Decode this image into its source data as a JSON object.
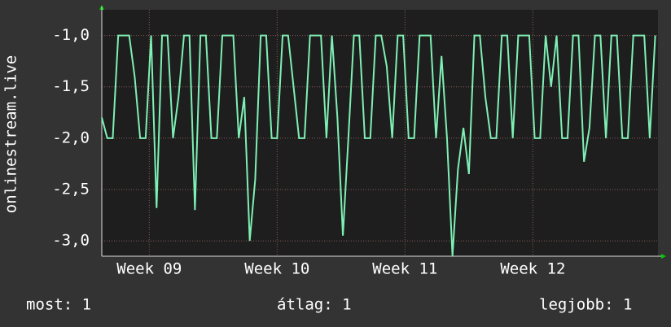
{
  "chart_data": {
    "type": "line",
    "ylabel": "onlinestream.live",
    "x": [
      0,
      0.3,
      0.6,
      0.9,
      1.2,
      1.5,
      1.8,
      2.1,
      2.4,
      2.7,
      3,
      3.3,
      3.6,
      3.9,
      4.2,
      4.5,
      4.8,
      5.1,
      5.4,
      5.7,
      6,
      6.3,
      6.6,
      6.9,
      7.2,
      7.5,
      7.8,
      8.1,
      8.4,
      8.7,
      9,
      9.3,
      9.6,
      9.9,
      10.2,
      10.5,
      10.8,
      11.1,
      11.4,
      11.7,
      12,
      12.3,
      12.6,
      12.9,
      13.2,
      13.5,
      13.8,
      14.1,
      14.4,
      14.7,
      15,
      15.3,
      15.6,
      15.9,
      16.2,
      16.5,
      16.8,
      17.1,
      17.4,
      17.7,
      18,
      18.3,
      18.6,
      18.9,
      19.2,
      19.5,
      19.8,
      20.1,
      20.4,
      20.7,
      21,
      21.3,
      21.6,
      21.9,
      22.2,
      22.5,
      22.8,
      23.1,
      23.4,
      23.7,
      24,
      24.3,
      24.6,
      24.9,
      25.2,
      25.5,
      25.8,
      26.1,
      26.4,
      26.7,
      27,
      27.3,
      27.6,
      27.9,
      28.2,
      28.5,
      28.8,
      29.1,
      29.4,
      29.7,
      30,
      30.3
    ],
    "series": [
      {
        "color": "#7ef0b4",
        "values": [
          -1.8,
          -2,
          -2,
          -1,
          -1,
          -1,
          -1.4,
          -2,
          -2,
          -1,
          -2.68,
          -1,
          -1,
          -2,
          -1.6,
          -1,
          -1,
          -2.7,
          -1,
          -1,
          -2,
          -2,
          -1,
          -1,
          -1,
          -2,
          -1.6,
          -3.0,
          -2.4,
          -1,
          -1,
          -2,
          -2,
          -1,
          -1,
          -1.5,
          -2,
          -2,
          -1,
          -1,
          -1,
          -2,
          -1,
          -1.8,
          -2.95,
          -2,
          -1,
          -1,
          -2,
          -2,
          -1,
          -1,
          -1.3,
          -2,
          -1,
          -1,
          -2,
          -2,
          -1,
          -1,
          -1,
          -2,
          -1.2,
          -2,
          -3.15,
          -2.3,
          -1.9,
          -2.35,
          -1,
          -1,
          -1.6,
          -2,
          -2,
          -1,
          -1,
          -2,
          -1,
          -1,
          -1,
          -2,
          -2,
          -1,
          -1.5,
          -1,
          -2,
          -2,
          -1,
          -1,
          -2.23,
          -1.9,
          -1,
          -1,
          -2,
          -1,
          -1,
          -2,
          -2,
          -1,
          -1,
          -1,
          -2,
          -1
        ]
      }
    ],
    "xlim": [
      0,
      30.45
    ],
    "xticks": [
      {
        "value": 2.6,
        "label": "Week 09"
      },
      {
        "value": 9.6,
        "label": "Week 10"
      },
      {
        "value": 16.6,
        "label": "Week 11"
      },
      {
        "value": 23.6,
        "label": "Week 12"
      }
    ],
    "ylim": [
      -3.15,
      -0.75
    ],
    "yticks": [
      {
        "value": -1,
        "label": "-1,0"
      },
      {
        "value": -1.5,
        "label": "-1,5"
      },
      {
        "value": -2,
        "label": "-2,0"
      },
      {
        "value": -2.5,
        "label": "-2,5"
      },
      {
        "value": -3,
        "label": "-3,0"
      }
    ],
    "grid": true,
    "legend": [
      "most: 1",
      "átlag: 1",
      "legjobb: 1"
    ]
  }
}
